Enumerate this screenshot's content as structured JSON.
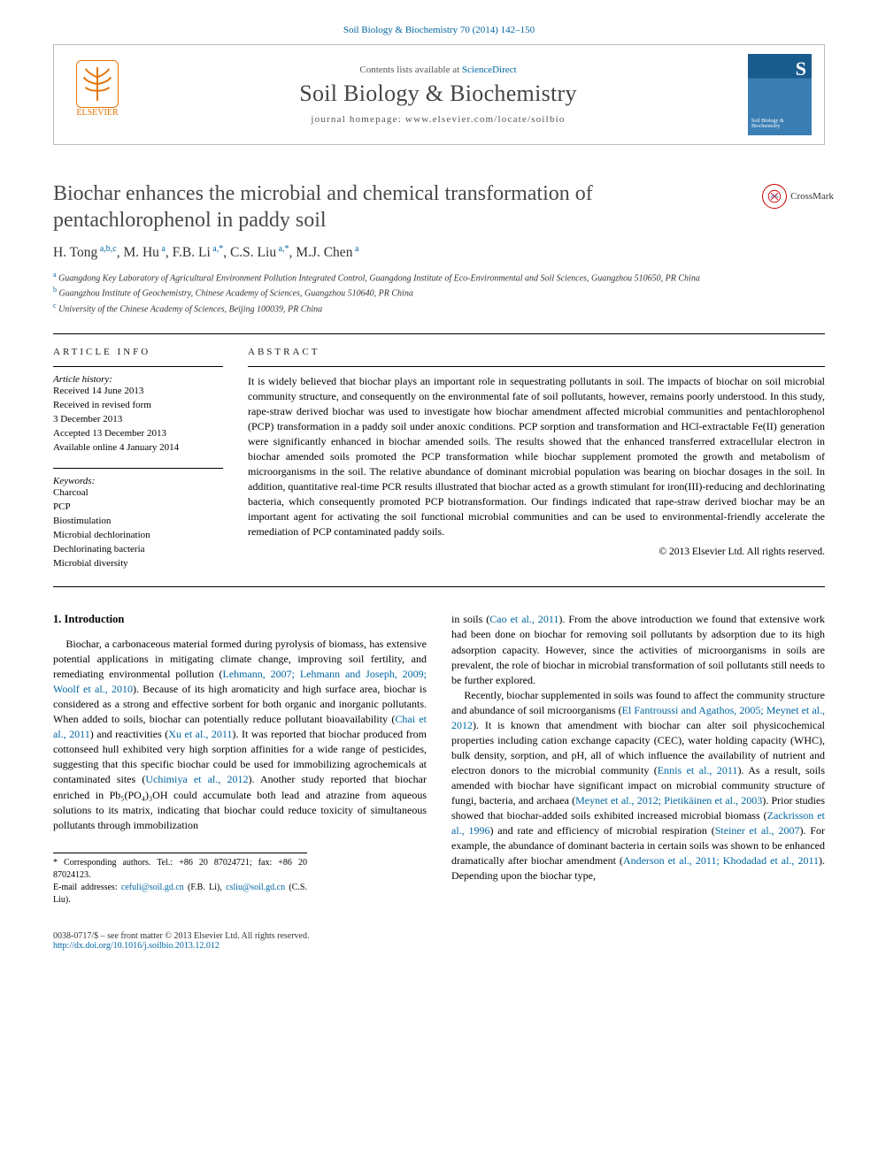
{
  "citation": "Soil Biology & Biochemistry 70 (2014) 142–150",
  "header": {
    "contents_prefix": "Contents lists available at ",
    "contents_link": "ScienceDirect",
    "journal": "Soil Biology & Biochemistry",
    "homepage_prefix": "journal homepage: ",
    "homepage": "www.elsevier.com/locate/soilbio",
    "publisher": "ELSEVIER",
    "cover_text": "Soil Biology & Biochemistry",
    "cover_letter": "S"
  },
  "crossmark_label": "CrossMark",
  "title": "Biochar enhances the microbial and chemical transformation of pentachlorophenol in paddy soil",
  "authors_html": "H. Tong|a,b,c|, M. Hu|a|, F.B. Li|a,*|, C.S. Liu|a,*|, M.J. Chen|a|",
  "affiliations": [
    {
      "marker": "a",
      "text": "Guangdong Key Laboratory of Agricultural Environment Pollution Integrated Control, Guangdong Institute of Eco-Environmental and Soil Sciences, Guangzhou 510650, PR China"
    },
    {
      "marker": "b",
      "text": "Guangzhou Institute of Geochemistry, Chinese Academy of Sciences, Guangzhou 510640, PR China"
    },
    {
      "marker": "c",
      "text": "University of the Chinese Academy of Sciences, Beijing 100039, PR China"
    }
  ],
  "info": {
    "section_label": "ARTICLE INFO",
    "history_label": "Article history:",
    "history": [
      "Received 14 June 2013",
      "Received in revised form",
      "3 December 2013",
      "Accepted 13 December 2013",
      "Available online 4 January 2014"
    ],
    "kw_label": "Keywords:",
    "keywords": [
      "Charcoal",
      "PCP",
      "Biostimulation",
      "Microbial dechlorination",
      "Dechlorinating bacteria",
      "Microbial diversity"
    ]
  },
  "abstract": {
    "label": "ABSTRACT",
    "text": "It is widely believed that biochar plays an important role in sequestrating pollutants in soil. The impacts of biochar on soil microbial community structure, and consequently on the environmental fate of soil pollutants, however, remains poorly understood. In this study, rape-straw derived biochar was used to investigate how biochar amendment affected microbial communities and pentachlorophenol (PCP) transformation in a paddy soil under anoxic conditions. PCP sorption and transformation and HCl-extractable Fe(II) generation were significantly enhanced in biochar amended soils. The results showed that the enhanced transferred extracellular electron in biochar amended soils promoted the PCP transformation while biochar supplement promoted the growth and metabolism of microorganisms in the soil. The relative abundance of dominant microbial population was bearing on biochar dosages in the soil. In addition, quantitative real-time PCR results illustrated that biochar acted as a growth stimulant for iron(III)-reducing and dechlorinating bacteria, which consequently promoted PCP biotransformation. Our findings indicated that rape-straw derived biochar may be an important agent for activating the soil functional microbial communities and can be used to environmental-friendly accelerate the remediation of PCP contaminated paddy soils.",
    "copyright": "© 2013 Elsevier Ltd. All rights reserved."
  },
  "body": {
    "heading": "1. Introduction",
    "col1_p1a": "Biochar, a carbonaceous material formed during pyrolysis of biomass, has extensive potential applications in mitigating climate change, improving soil fertility, and remediating environmental pollution (",
    "col1_link1": "Lehmann, 2007; Lehmann and Joseph, 2009; Woolf et al., 2010",
    "col1_p1b": "). Because of its high aromaticity and high surface area, biochar is considered as a strong and effective sorbent for both organic and inorganic pollutants. When added to soils, biochar can potentially reduce pollutant bioavailability (",
    "col1_link2": "Chai et al., 2011",
    "col1_p1c": ") and reactivities (",
    "col1_link3": "Xu et al., 2011",
    "col1_p1d": "). It was reported that biochar produced from cottonseed hull exhibited very high sorption affinities for a wide range of pesticides, suggesting that this specific biochar could be used for immobilizing agrochemicals at contaminated sites (",
    "col1_link4": "Uchimiya et al., 2012",
    "col1_p1e": "). Another study reported that biochar enriched in Pb₅(PO₄)₃OH could accumulate both lead and atrazine from aqueous solutions to its matrix, indicating that biochar could reduce toxicity of simultaneous pollutants through immobilization",
    "col2_p1a": "in soils (",
    "col2_link1": "Cao et al., 2011",
    "col2_p1b": "). From the above introduction we found that extensive work had been done on biochar for removing soil pollutants by adsorption due to its high adsorption capacity. However, since the activities of microorganisms in soils are prevalent, the role of biochar in microbial transformation of soil pollutants still needs to be further explored.",
    "col2_p2a": "Recently, biochar supplemented in soils was found to affect the community structure and abundance of soil microorganisms (",
    "col2_link2": "El Fantroussi and Agathos, 2005; Meynet et al., 2012",
    "col2_p2b": "). It is known that amendment with biochar can alter soil physicochemical properties including cation exchange capacity (CEC), water holding capacity (WHC), bulk density, sorption, and pH, all of which influence the availability of nutrient and electron donors to the microbial community (",
    "col2_link3": "Ennis et al., 2011",
    "col2_p2c": "). As a result, soils amended with biochar have significant impact on microbial community structure of fungi, bacteria, and archaea (",
    "col2_link4": "Meynet et al., 2012; Pietikäinen et al., 2003",
    "col2_p2d": "). Prior studies showed that biochar-added soils exhibited increased microbial biomass (",
    "col2_link5": "Zackrisson et al., 1996",
    "col2_p2e": ") and rate and efficiency of microbial respiration (",
    "col2_link6": "Steiner et al., 2007",
    "col2_p2f": "). For example, the abundance of dominant bacteria in certain soils was shown to be enhanced dramatically after biochar amendment (",
    "col2_link7": "Anderson et al., 2011; Khodadad et al., 2011",
    "col2_p2g": "). Depending upon the biochar type,"
  },
  "corresponding": {
    "line1": "* Corresponding authors. Tel.: +86 20 87024721; fax: +86 20 87024123.",
    "line2_prefix": "E-mail addresses: ",
    "email1": "cefuli@soil.gd.cn",
    "email1_who": " (F.B. Li), ",
    "email2": "csliu@soil.gd.cn",
    "email2_who": " (C.S. Liu)."
  },
  "footer": {
    "issn": "0038-0717/$ – see front matter © 2013 Elsevier Ltd. All rights reserved.",
    "doi": "http://dx.doi.org/10.1016/j.soilbio.2013.12.012"
  },
  "colors": {
    "link": "#0066a1",
    "accent": "#e57200"
  }
}
